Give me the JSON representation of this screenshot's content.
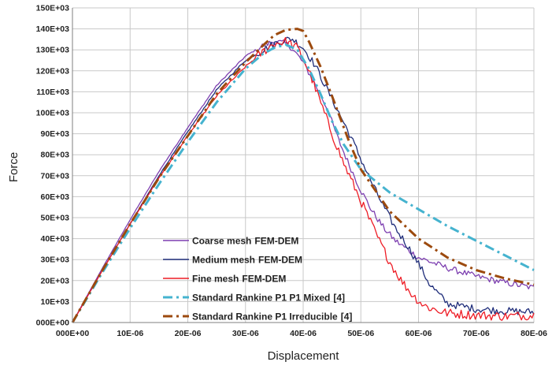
{
  "chart_data": {
    "type": "line",
    "title": "",
    "xlabel": "Displacement",
    "ylabel": "Force",
    "xlim": [
      0,
      8e-05
    ],
    "ylim": [
      0,
      150000
    ],
    "grid": true,
    "legend_position": "bottom-left",
    "x_ticks": [
      "000E+00",
      "10E-06",
      "20E-06",
      "30E-06",
      "40E-06",
      "50E-06",
      "60E-06",
      "70E-06",
      "80E-06"
    ],
    "x_tick_values": [
      0,
      1e-05,
      2e-05,
      3e-05,
      4e-05,
      5e-05,
      6e-05,
      7e-05,
      8e-05
    ],
    "y_ticks": [
      "000E+00",
      "10E+03",
      "20E+03",
      "30E+03",
      "40E+03",
      "50E+03",
      "60E+03",
      "70E+03",
      "80E+03",
      "90E+03",
      "100E+03",
      "110E+03",
      "120E+03",
      "130E+03",
      "140E+03",
      "150E+03"
    ],
    "y_tick_values": [
      0,
      10000,
      20000,
      30000,
      40000,
      50000,
      60000,
      70000,
      80000,
      90000,
      100000,
      110000,
      120000,
      130000,
      140000,
      150000
    ],
    "series": [
      {
        "name": "Coarse mesh FEM-DEM",
        "label_main": "Coarse mesh",
        "label_suffix": "FEM-DEM",
        "color": "#7d3fb0",
        "style": "solid",
        "noise": 1500,
        "x": [
          0,
          5e-06,
          1e-05,
          1.5e-05,
          2e-05,
          2.5e-05,
          3e-05,
          3.3e-05,
          3.5e-05,
          3.6e-05,
          3.7e-05,
          3.8e-05,
          4e-05,
          4.2e-05,
          4.4e-05,
          4.6e-05,
          4.8e-05,
          5e-05,
          5.2e-05,
          5.4e-05,
          5.6e-05,
          5.8e-05,
          6e-05,
          6.5e-05,
          7e-05,
          7.5e-05,
          8e-05
        ],
        "y": [
          0,
          25000,
          49000,
          72000,
          93000,
          113000,
          127000,
          132000,
          134000,
          133500,
          133000,
          131000,
          124000,
          114000,
          103000,
          88000,
          75000,
          63000,
          53000,
          45000,
          39000,
          35000,
          31000,
          26000,
          22000,
          19000,
          16500
        ]
      },
      {
        "name": "Medium mesh FEM-DEM",
        "label_main": "Medium mesh",
        "label_suffix": "FEM-DEM",
        "color": "#1f2d7a",
        "style": "solid",
        "noise": 1800,
        "x": [
          0,
          5e-06,
          1e-05,
          1.5e-05,
          2e-05,
          2.5e-05,
          3e-05,
          3.5e-05,
          3.8e-05,
          4e-05,
          4.2e-05,
          4.4e-05,
          4.6e-05,
          4.8e-05,
          5e-05,
          5.2e-05,
          5.4e-05,
          5.6e-05,
          5.8e-05,
          6e-05,
          6.2e-05,
          6.5e-05,
          7e-05,
          7.5e-05,
          8e-05
        ],
        "y": [
          0,
          24000,
          47000,
          70000,
          91000,
          111000,
          125000,
          133000,
          135500,
          131000,
          123000,
          112000,
          101000,
          90000,
          78000,
          66000,
          55000,
          45000,
          37000,
          28000,
          18000,
          9000,
          6500,
          5500,
          5000
        ]
      },
      {
        "name": "Fine mesh FEM-DEM",
        "label_main": "Fine mesh",
        "label_suffix": "FEM-DEM",
        "color": "#ee1c25",
        "style": "solid",
        "noise": 2200,
        "x": [
          0,
          5e-06,
          1e-05,
          1.5e-05,
          2e-05,
          2.5e-05,
          3e-05,
          3.3e-05,
          3.5e-05,
          3.7e-05,
          3.9e-05,
          4.1e-05,
          4.3e-05,
          4.5e-05,
          4.7e-05,
          4.9e-05,
          5.1e-05,
          5.3e-05,
          5.5e-05,
          5.7e-05,
          5.9e-05,
          6.1e-05,
          6.3e-05,
          6.5e-05,
          7e-05,
          7.5e-05,
          8e-05
        ],
        "y": [
          0,
          24000,
          47000,
          69000,
          89000,
          108000,
          122000,
          129000,
          133000,
          134000,
          131000,
          120000,
          105000,
          90000,
          76000,
          64000,
          52000,
          40000,
          29000,
          20000,
          13000,
          8000,
          6000,
          4500,
          3500,
          3000,
          3500
        ]
      },
      {
        "name": "Standard Rankine P1 P1 Mixed [4]",
        "label_main": "Standard Rankine P1 P1 Mixed",
        "label_suffix": "[4]",
        "color": "#45b3cf",
        "style": "dashdot",
        "noise": 0,
        "x": [
          0,
          5e-06,
          1e-05,
          1.5e-05,
          2e-05,
          2.5e-05,
          3e-05,
          3.3e-05,
          3.5e-05,
          3.7e-05,
          3.9e-05,
          4.1e-05,
          4.3e-05,
          4.5e-05,
          4.7e-05,
          5e-05,
          5.5e-05,
          6e-05,
          6.5e-05,
          7e-05,
          7.5e-05,
          8e-05
        ],
        "y": [
          0,
          23000,
          45000,
          66000,
          86000,
          105000,
          121000,
          128000,
          131000,
          132500,
          130000,
          121000,
          109000,
          96000,
          85000,
          73000,
          62000,
          54000,
          46000,
          39000,
          32000,
          25000
        ]
      },
      {
        "name": "Standard Rankine P1 Irreducible [4]",
        "label_main": "Standard Rankine P1 Irreducible",
        "label_suffix": "[4]",
        "color": "#9c4a0e",
        "style": "dashdot",
        "noise": 0,
        "x": [
          0,
          5e-06,
          1e-05,
          1.5e-05,
          2e-05,
          2.5e-05,
          3e-05,
          3.3e-05,
          3.5e-05,
          3.7e-05,
          3.9e-05,
          4e-05,
          4.1e-05,
          4.3e-05,
          4.5e-05,
          4.8e-05,
          5e-05,
          5.5e-05,
          6e-05,
          6.5e-05,
          7e-05,
          7.5e-05,
          8e-05
        ],
        "y": [
          0,
          24000,
          47000,
          69000,
          89000,
          109000,
          124000,
          132000,
          137000,
          139500,
          140000,
          139000,
          134000,
          122000,
          108000,
          86000,
          73000,
          53000,
          40000,
          31000,
          25000,
          21000,
          18000
        ]
      }
    ]
  }
}
